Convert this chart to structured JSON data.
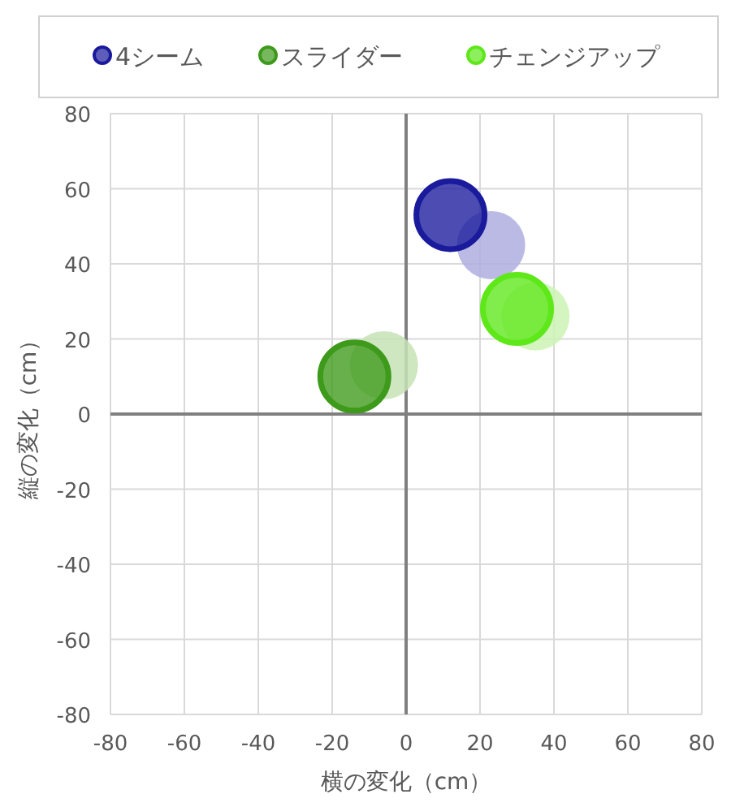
{
  "chart_data": {
    "type": "scatter",
    "xlabel": "横の変化（cm）",
    "ylabel": "縦の変化（cm）",
    "xlim": [
      -80,
      80
    ],
    "ylim": [
      -80,
      80
    ],
    "xticks": [
      -80,
      -60,
      -40,
      -20,
      0,
      20,
      40,
      60,
      80
    ],
    "yticks": [
      -80,
      -60,
      -40,
      -20,
      0,
      20,
      40,
      60,
      80
    ],
    "grid": true,
    "legend": "top",
    "marker": "circle",
    "series": [
      {
        "color": "#aeaedf",
        "x": [
          23
        ],
        "values": [
          45
        ]
      },
      {
        "color": "#c5e3b5",
        "x": [
          -6
        ],
        "values": [
          13
        ]
      },
      {
        "color": "#cdf3b5",
        "x": [
          35
        ],
        "values": [
          26
        ]
      },
      {
        "name": "4シーム",
        "color": "#1a1a9c",
        "x": [
          12
        ],
        "values": [
          53
        ]
      },
      {
        "name": "スライダー",
        "color": "#3d9a1a",
        "x": [
          -14
        ],
        "values": [
          10
        ]
      },
      {
        "name": "チェンジアップ",
        "color": "#5ee81a",
        "x": [
          30
        ],
        "values": [
          28
        ]
      }
    ]
  }
}
